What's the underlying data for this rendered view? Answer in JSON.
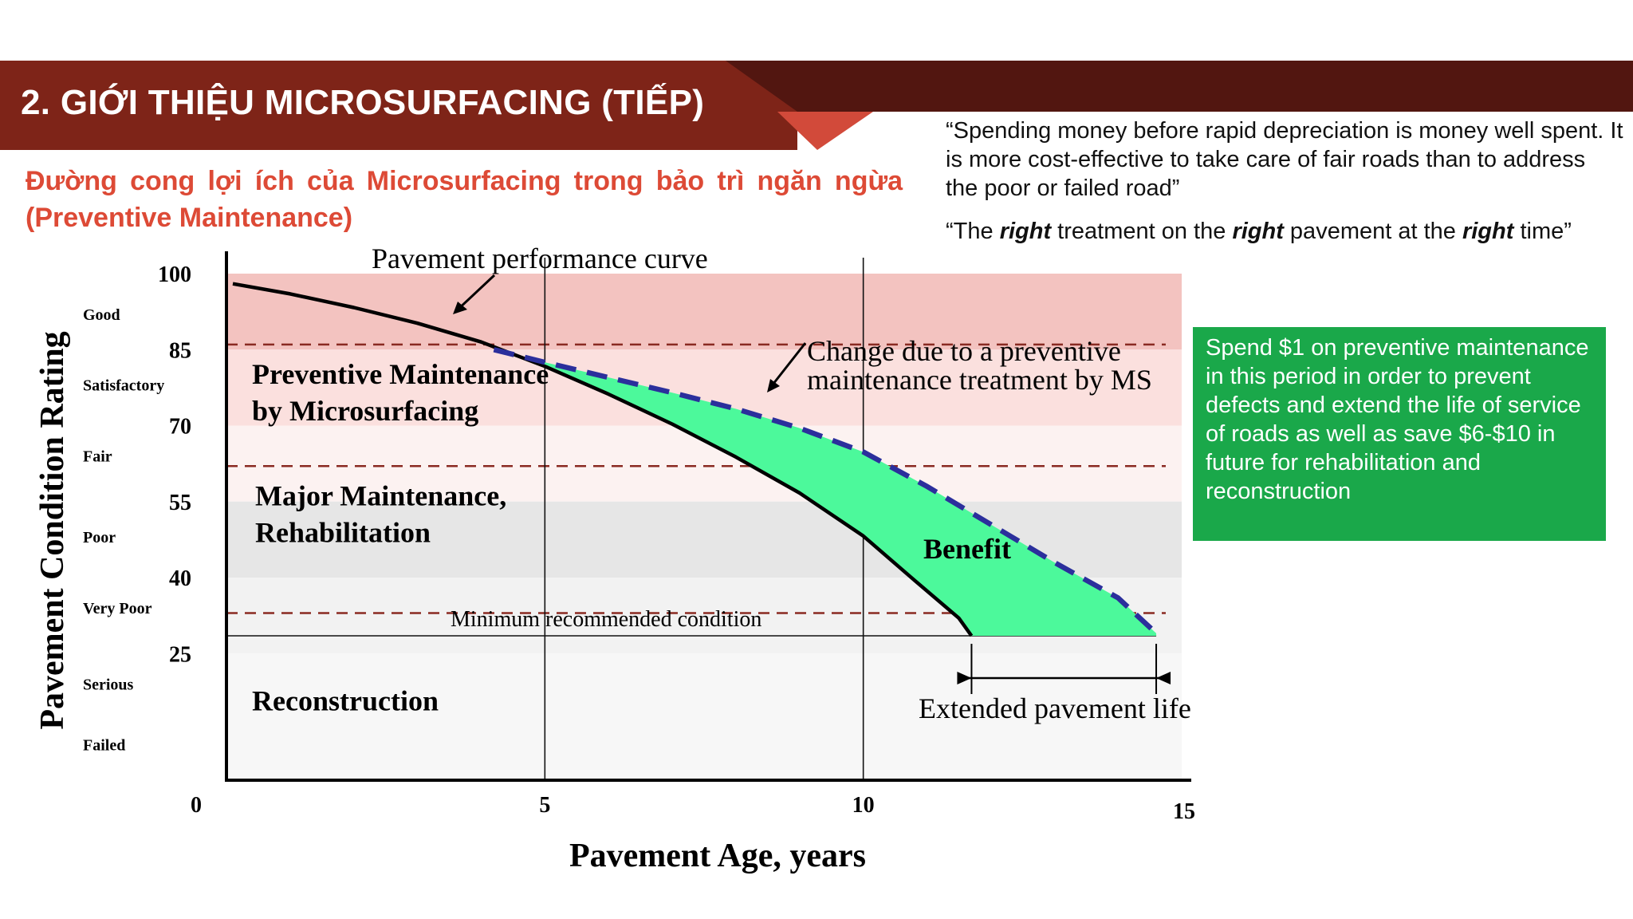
{
  "header": {
    "title": "2. GIỚI THIỆU MICROSURFACING (TIẾP)",
    "subtitle": "Đường cong lợi ích của Microsurfacing trong bảo trì ngăn ngừa (Preventive Maintenance)"
  },
  "quotes": {
    "q1": "“Spending money before rapid depreciation is money well spent. It is more cost-effective to take care of fair roads than to address the poor or failed road”",
    "q2_parts": [
      "“The ",
      "right",
      " treatment on the ",
      "right",
      " pavement at the ",
      "right",
      " time”"
    ]
  },
  "callout": {
    "text": "Spend $1 on preventive maintenance\nin this period in order to prevent defects and extend the life of service of roads as well as save $6-$10 in future for rehabilitation and reconstruction"
  },
  "colors": {
    "header_dark": "#521610",
    "header_main": "#7e2418",
    "header_accent": "#d24a3a",
    "subtitle": "#dd4a36",
    "callout_bg": "#1aa84a",
    "benefit_fill": "#4cf99b",
    "ms_curve": "#2b2f9c",
    "threshold_line": "#8a2a22"
  },
  "chart_data": {
    "type": "line",
    "xlabel": "Pavement Age, years",
    "ylabel": "Pavement Condition Rating",
    "xlim": [
      0,
      15
    ],
    "ylim": [
      0,
      100
    ],
    "x_ticks": [
      0,
      5,
      10,
      15
    ],
    "y_ticks": [
      100,
      85,
      70,
      55,
      40,
      25
    ],
    "grid_vertical": [
      5,
      10
    ],
    "bands": [
      {
        "from": 85,
        "to": 100,
        "color": "#f3c3c0"
      },
      {
        "from": 70,
        "to": 85,
        "color": "#fbe0de"
      },
      {
        "from": 55,
        "to": 70,
        "color": "#fcf2f1"
      },
      {
        "from": 40,
        "to": 55,
        "color": "#e6e6e6"
      },
      {
        "from": 25,
        "to": 40,
        "color": "#f2f2f2"
      },
      {
        "from": 0,
        "to": 25,
        "color": "#f7f7f7"
      }
    ],
    "condition_labels": [
      {
        "label": "Good",
        "y": 92
      },
      {
        "label": "Satisfactory",
        "y": 78
      },
      {
        "label": "Fair",
        "y": 64
      },
      {
        "label": "Poor",
        "y": 48
      },
      {
        "label": "Very Poor",
        "y": 34
      },
      {
        "label": "Serious",
        "y": 19
      },
      {
        "label": "Failed",
        "y": 7
      }
    ],
    "thresholds": [
      86,
      62,
      33
    ],
    "minimum_condition": {
      "y": 28.5,
      "label": "Minimum recommended condition"
    },
    "series": [
      {
        "name": "Pavement performance curve",
        "x": [
          0.1,
          1,
          2,
          3,
          4,
          5,
          6,
          7,
          8,
          9,
          10,
          10.8,
          11.5,
          11.7
        ],
        "y": [
          98,
          96,
          93.3,
          90.2,
          86.5,
          81.7,
          76.2,
          70.3,
          63.8,
          56.7,
          48.2,
          39.5,
          32,
          28.5
        ]
      },
      {
        "name": "Change due to a preventive maintenance treatment by MS",
        "x": [
          4.2,
          5,
          6,
          7,
          8,
          9,
          10,
          11,
          12,
          13,
          14,
          14.6
        ],
        "y": [
          85,
          82.5,
          79.5,
          76.5,
          73.3,
          69.5,
          64.8,
          58,
          50.5,
          43,
          36,
          29
        ]
      }
    ],
    "annotations": {
      "performance_curve": "Pavement performance curve",
      "ms_change": "Change due to a preventive maintenance treatment by MS",
      "benefit": "Benefit",
      "extended_life": "Extended pavement life",
      "extended_life_range": [
        11.7,
        14.6
      ]
    },
    "zones": [
      {
        "label": "Preventive Maintenance by Microsurfacing",
        "y": 77
      },
      {
        "label": "Major Maintenance, Rehabilitation",
        "y": 53
      },
      {
        "label": "Reconstruction",
        "y": 16
      }
    ]
  }
}
